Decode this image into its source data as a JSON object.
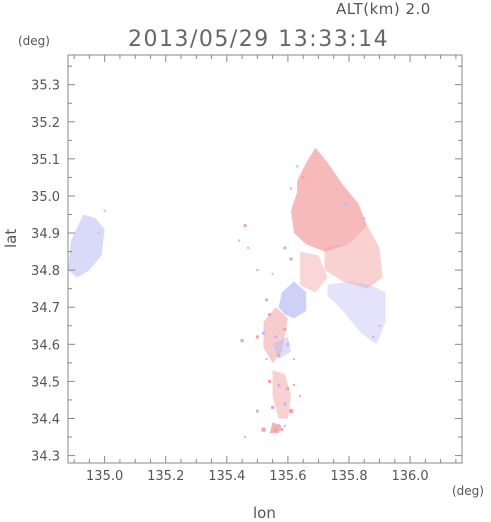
{
  "header": {
    "altitude_label": "ALT(km) 2.0",
    "timestamp": "2013/05/29 13:33:14"
  },
  "axes": {
    "lat_unit": "(deg)",
    "lon_unit": "(deg)",
    "lat_title": "lat",
    "lon_title": "lon",
    "lon_range": [
      134.88,
      136.17
    ],
    "lat_range": [
      34.28,
      35.38
    ],
    "lon_ticks": [
      {
        "value": 135.0,
        "label": "135.0"
      },
      {
        "value": 135.2,
        "label": "135.2"
      },
      {
        "value": 135.4,
        "label": "135.4"
      },
      {
        "value": 135.6,
        "label": "135.6"
      },
      {
        "value": 135.8,
        "label": "135.8"
      },
      {
        "value": 136.0,
        "label": "136.0"
      }
    ],
    "lat_ticks": [
      {
        "value": 34.3,
        "label": "34.3"
      },
      {
        "value": 34.4,
        "label": "34.4"
      },
      {
        "value": 34.5,
        "label": "34.5"
      },
      {
        "value": 34.6,
        "label": "34.6"
      },
      {
        "value": 34.7,
        "label": "34.7"
      },
      {
        "value": 34.8,
        "label": "34.8"
      },
      {
        "value": 34.9,
        "label": "34.9"
      },
      {
        "value": 35.0,
        "label": "35.0"
      },
      {
        "value": 35.1,
        "label": "35.1"
      },
      {
        "value": 35.2,
        "label": "35.2"
      },
      {
        "value": 35.3,
        "label": "35.3"
      }
    ]
  },
  "colors": {
    "toward": "#f3a3a3",
    "away": "#b9bcf4",
    "axis": "#888888"
  },
  "echo_regions": [
    {
      "type": "away",
      "opacity": 0.55,
      "points": [
        [
          134.88,
          34.8
        ],
        [
          134.89,
          34.88
        ],
        [
          134.93,
          34.95
        ],
        [
          134.97,
          34.94
        ],
        [
          135.0,
          34.91
        ],
        [
          134.99,
          34.84
        ],
        [
          134.95,
          34.8
        ],
        [
          134.91,
          34.78
        ]
      ]
    },
    {
      "type": "toward",
      "opacity": 0.75,
      "points": [
        [
          135.63,
          35.04
        ],
        [
          135.66,
          35.09
        ],
        [
          135.69,
          35.13
        ],
        [
          135.73,
          35.09
        ],
        [
          135.78,
          35.03
        ],
        [
          135.83,
          34.98
        ],
        [
          135.86,
          34.92
        ],
        [
          135.8,
          34.87
        ],
        [
          135.72,
          34.85
        ],
        [
          135.66,
          34.87
        ],
        [
          135.62,
          34.9
        ],
        [
          135.61,
          34.96
        ],
        [
          135.63,
          35.01
        ]
      ]
    },
    {
      "type": "toward",
      "opacity": 0.5,
      "points": [
        [
          135.72,
          34.86
        ],
        [
          135.8,
          34.87
        ],
        [
          135.86,
          34.92
        ],
        [
          135.9,
          34.86
        ],
        [
          135.91,
          34.78
        ],
        [
          135.86,
          34.75
        ],
        [
          135.78,
          34.77
        ],
        [
          135.72,
          34.8
        ]
      ]
    },
    {
      "type": "away",
      "opacity": 0.4,
      "points": [
        [
          135.73,
          34.76
        ],
        [
          135.8,
          34.77
        ],
        [
          135.87,
          34.76
        ],
        [
          135.92,
          34.74
        ],
        [
          135.92,
          34.66
        ],
        [
          135.89,
          34.6
        ],
        [
          135.84,
          34.63
        ],
        [
          135.77,
          34.7
        ],
        [
          135.73,
          34.73
        ]
      ]
    },
    {
      "type": "toward",
      "opacity": 0.45,
      "points": [
        [
          135.64,
          34.85
        ],
        [
          135.7,
          34.84
        ],
        [
          135.73,
          34.78
        ],
        [
          135.69,
          34.74
        ],
        [
          135.64,
          34.76
        ]
      ]
    },
    {
      "type": "away",
      "opacity": 0.7,
      "points": [
        [
          135.57,
          34.7
        ],
        [
          135.58,
          34.74
        ],
        [
          135.62,
          34.77
        ],
        [
          135.66,
          34.74
        ],
        [
          135.66,
          34.69
        ],
        [
          135.62,
          34.67
        ],
        [
          135.59,
          34.68
        ]
      ]
    },
    {
      "type": "toward",
      "opacity": 0.55,
      "points": [
        [
          135.52,
          34.66
        ],
        [
          135.56,
          34.7
        ],
        [
          135.6,
          34.67
        ],
        [
          135.58,
          34.58
        ],
        [
          135.55,
          34.55
        ],
        [
          135.52,
          34.59
        ]
      ]
    },
    {
      "type": "away",
      "opacity": 0.5,
      "points": [
        [
          135.55,
          34.6
        ],
        [
          135.6,
          34.62
        ],
        [
          135.61,
          34.58
        ],
        [
          135.57,
          34.56
        ]
      ]
    },
    {
      "type": "toward",
      "opacity": 0.5,
      "points": [
        [
          135.55,
          34.53
        ],
        [
          135.59,
          34.52
        ],
        [
          135.61,
          34.46
        ],
        [
          135.6,
          34.4
        ],
        [
          135.57,
          34.4
        ],
        [
          135.55,
          34.46
        ]
      ]
    },
    {
      "type": "toward",
      "opacity": 0.8,
      "points": [
        [
          135.54,
          34.36
        ],
        [
          135.55,
          34.39
        ],
        [
          135.58,
          34.38
        ],
        [
          135.57,
          34.36
        ]
      ]
    }
  ],
  "echo_specks": [
    {
      "type": "toward",
      "lon": 135.46,
      "lat": 34.92,
      "size": 3
    },
    {
      "type": "away",
      "lon": 135.44,
      "lat": 34.88,
      "size": 2
    },
    {
      "type": "toward",
      "lon": 135.47,
      "lat": 34.86,
      "size": 2
    },
    {
      "type": "away",
      "lon": 135.59,
      "lat": 34.86,
      "size": 3
    },
    {
      "type": "toward",
      "lon": 135.61,
      "lat": 34.83,
      "size": 3
    },
    {
      "type": "away",
      "lon": 135.55,
      "lat": 34.79,
      "size": 2
    },
    {
      "type": "toward",
      "lon": 135.5,
      "lat": 34.8,
      "size": 2
    },
    {
      "type": "away",
      "lon": 135.53,
      "lat": 34.72,
      "size": 3
    },
    {
      "type": "toward",
      "lon": 135.54,
      "lat": 34.68,
      "size": 3
    },
    {
      "type": "away",
      "lon": 135.52,
      "lat": 34.63,
      "size": 3
    },
    {
      "type": "toward",
      "lon": 135.5,
      "lat": 34.62,
      "size": 3
    },
    {
      "type": "away",
      "lon": 135.56,
      "lat": 34.62,
      "size": 3
    },
    {
      "type": "toward",
      "lon": 135.59,
      "lat": 34.64,
      "size": 3
    },
    {
      "type": "away",
      "lon": 135.6,
      "lat": 34.6,
      "size": 3
    },
    {
      "type": "toward",
      "lon": 135.57,
      "lat": 34.57,
      "size": 3
    },
    {
      "type": "away",
      "lon": 135.53,
      "lat": 34.56,
      "size": 2
    },
    {
      "type": "toward",
      "lon": 135.54,
      "lat": 34.5,
      "size": 3
    },
    {
      "type": "away",
      "lon": 135.57,
      "lat": 34.49,
      "size": 3
    },
    {
      "type": "toward",
      "lon": 135.6,
      "lat": 34.48,
      "size": 3
    },
    {
      "type": "toward",
      "lon": 135.62,
      "lat": 34.49,
      "size": 2
    },
    {
      "type": "away",
      "lon": 135.59,
      "lat": 34.44,
      "size": 3
    },
    {
      "type": "toward",
      "lon": 135.61,
      "lat": 34.42,
      "size": 4
    },
    {
      "type": "away",
      "lon": 135.5,
      "lat": 34.42,
      "size": 3
    },
    {
      "type": "toward",
      "lon": 135.55,
      "lat": 34.43,
      "size": 3
    },
    {
      "type": "away",
      "lon": 135.57,
      "lat": 34.38,
      "size": 3
    },
    {
      "type": "toward",
      "lon": 135.52,
      "lat": 34.37,
      "size": 4
    },
    {
      "type": "toward",
      "lon": 135.56,
      "lat": 34.37,
      "size": 4
    },
    {
      "type": "toward",
      "lon": 135.58,
      "lat": 34.37,
      "size": 3
    },
    {
      "type": "away",
      "lon": 135.59,
      "lat": 34.38,
      "size": 2
    },
    {
      "type": "toward",
      "lon": 135.45,
      "lat": 34.61,
      "size": 3
    },
    {
      "type": "toward",
      "lon": 135.46,
      "lat": 34.35,
      "size": 2
    },
    {
      "type": "toward",
      "lon": 135.65,
      "lat": 35.05,
      "size": 3
    },
    {
      "type": "away",
      "lon": 135.63,
      "lat": 35.08,
      "size": 2
    },
    {
      "type": "toward",
      "lon": 135.61,
      "lat": 35.02,
      "size": 2
    },
    {
      "type": "away",
      "lon": 135.79,
      "lat": 34.98,
      "size": 3
    },
    {
      "type": "away",
      "lon": 135.85,
      "lat": 34.94,
      "size": 2
    },
    {
      "type": "toward",
      "lon": 135.88,
      "lat": 34.62,
      "size": 2
    },
    {
      "type": "toward",
      "lon": 135.9,
      "lat": 34.65,
      "size": 2
    },
    {
      "type": "away",
      "lon": 135.0,
      "lat": 34.96,
      "size": 2
    },
    {
      "type": "away",
      "lon": 134.98,
      "lat": 34.9,
      "size": 2
    },
    {
      "type": "toward",
      "lon": 135.64,
      "lat": 34.46,
      "size": 2
    },
    {
      "type": "away",
      "lon": 135.62,
      "lat": 34.56,
      "size": 2
    }
  ]
}
